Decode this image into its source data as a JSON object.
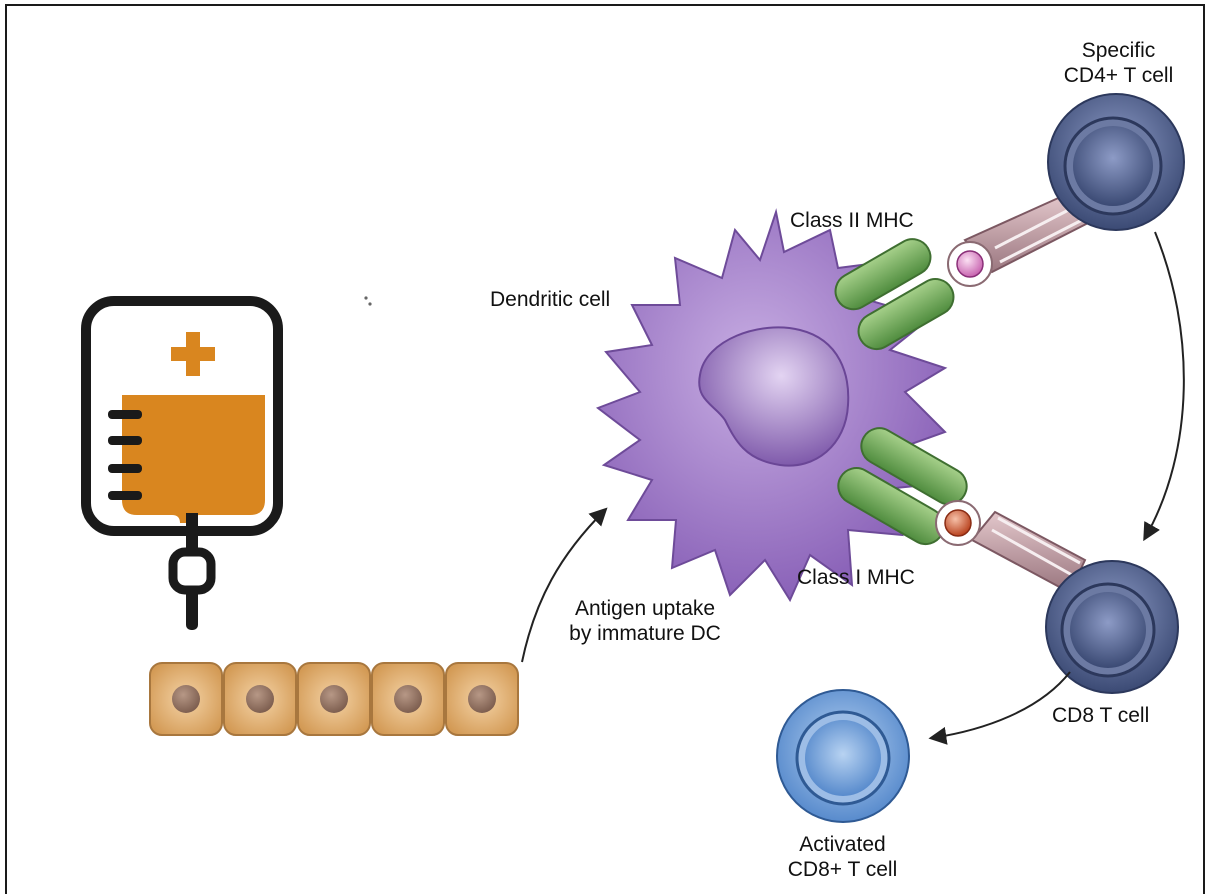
{
  "labels": {
    "cd4_line1": "Specific",
    "cd4_line2": "CD4+ T cell",
    "class_ii": "Class II MHC",
    "dendritic": "Dendritic cell",
    "class_i": "Class I MHC",
    "uptake_line1": "Antigen uptake",
    "uptake_line2": "by immature DC",
    "cd8": "CD8 T cell",
    "activated_line1": "Activated",
    "activated_line2": "CD8+ T cell"
  },
  "colors": {
    "iv_orange": "#d9861f",
    "dc_purple": "#9a75c4",
    "mhc_green": "#6fa65a",
    "tcell_navy": "#3d4d78",
    "activated_blue": "#5c8fd0",
    "epithelial_tan": "#d8a865"
  }
}
